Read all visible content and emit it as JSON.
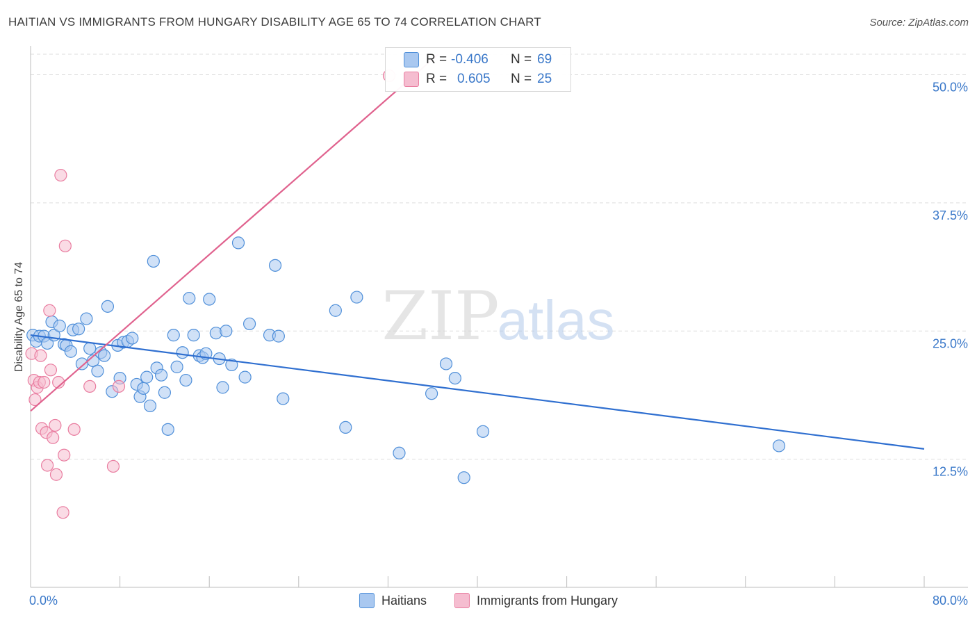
{
  "title": "HAITIAN VS IMMIGRANTS FROM HUNGARY DISABILITY AGE 65 TO 74 CORRELATION CHART",
  "source": "Source: ZipAtlas.com",
  "watermark": {
    "bold": "ZIP",
    "light": "atlas"
  },
  "colors": {
    "blue": "#4f8fd9",
    "blue_fill": "#a9c8f0",
    "blue_line": "#2f6fd0",
    "pink": "#e97da0",
    "pink_fill": "#f5bdd0",
    "pink_line": "#e0628e",
    "tick_label": "#3a78c9",
    "grid": "#dddddd"
  },
  "stats": {
    "rows": [
      {
        "series": "Haitians",
        "r_label": "R =",
        "r_value": "-0.406",
        "n_label": "N =",
        "n_value": "69"
      },
      {
        "series": "Immigrants from Hungary",
        "r_label": "R =",
        "r_value": "0.605",
        "n_label": "N =",
        "n_value": "25"
      }
    ]
  },
  "chart_data": {
    "type": "scatter",
    "title": "HAITIAN VS IMMIGRANTS FROM HUNGARY DISABILITY AGE 65 TO 74 CORRELATION CHART",
    "xlabel": "",
    "ylabel": "Disability Age 65 to 74",
    "xlim": [
      0,
      80
    ],
    "ylim": [
      0,
      52
    ],
    "x_tick_labels": [
      "0.0%",
      "80.0%"
    ],
    "y_ticks": [
      12.5,
      25.0,
      37.5,
      50.0
    ],
    "y_tick_labels": [
      "12.5%",
      "25.0%",
      "37.5%",
      "50.0%"
    ],
    "grid": true,
    "legend": [
      "Haitians",
      "Immigrants from Hungary"
    ],
    "series": [
      {
        "name": "Haitians",
        "color": "blue",
        "trend": {
          "x": [
            0,
            80
          ],
          "y": [
            24.6,
            13.5
          ]
        },
        "points": [
          [
            0.2,
            24.6
          ],
          [
            0.5,
            24.0
          ],
          [
            0.8,
            24.5
          ],
          [
            1.2,
            24.5
          ],
          [
            1.5,
            23.8
          ],
          [
            1.9,
            25.9
          ],
          [
            2.1,
            24.6
          ],
          [
            2.6,
            25.5
          ],
          [
            3.0,
            23.7
          ],
          [
            3.2,
            23.6
          ],
          [
            3.6,
            23.0
          ],
          [
            3.8,
            25.1
          ],
          [
            4.3,
            25.2
          ],
          [
            4.6,
            21.8
          ],
          [
            5.0,
            26.2
          ],
          [
            5.3,
            23.3
          ],
          [
            5.6,
            22.1
          ],
          [
            6.0,
            21.1
          ],
          [
            6.3,
            22.9
          ],
          [
            6.6,
            22.6
          ],
          [
            6.9,
            27.4
          ],
          [
            7.3,
            19.1
          ],
          [
            7.8,
            23.6
          ],
          [
            8.0,
            20.4
          ],
          [
            8.3,
            23.9
          ],
          [
            8.7,
            24.0
          ],
          [
            9.1,
            24.3
          ],
          [
            9.5,
            19.8
          ],
          [
            9.8,
            18.6
          ],
          [
            10.1,
            19.4
          ],
          [
            10.4,
            20.5
          ],
          [
            10.7,
            17.7
          ],
          [
            11.0,
            31.8
          ],
          [
            11.3,
            21.4
          ],
          [
            11.7,
            20.7
          ],
          [
            12.0,
            19.0
          ],
          [
            12.3,
            15.4
          ],
          [
            12.8,
            24.6
          ],
          [
            13.1,
            21.5
          ],
          [
            13.6,
            22.9
          ],
          [
            13.9,
            20.2
          ],
          [
            14.2,
            28.2
          ],
          [
            14.6,
            24.6
          ],
          [
            15.1,
            22.6
          ],
          [
            15.4,
            22.4
          ],
          [
            15.7,
            22.8
          ],
          [
            16.0,
            28.1
          ],
          [
            16.6,
            24.8
          ],
          [
            16.9,
            22.3
          ],
          [
            17.2,
            19.5
          ],
          [
            17.5,
            25.0
          ],
          [
            18.0,
            21.7
          ],
          [
            18.6,
            33.6
          ],
          [
            19.2,
            20.5
          ],
          [
            19.6,
            25.7
          ],
          [
            21.4,
            24.6
          ],
          [
            21.9,
            31.4
          ],
          [
            22.2,
            24.5
          ],
          [
            22.6,
            18.4
          ],
          [
            27.3,
            27.0
          ],
          [
            28.2,
            15.6
          ],
          [
            29.2,
            28.3
          ],
          [
            33.0,
            13.1
          ],
          [
            35.9,
            18.9
          ],
          [
            37.2,
            21.8
          ],
          [
            38.0,
            20.4
          ],
          [
            38.8,
            10.7
          ],
          [
            40.5,
            15.2
          ],
          [
            67.0,
            13.8
          ]
        ]
      },
      {
        "name": "Immigrants from Hungary",
        "color": "pink",
        "trend": {
          "x": [
            0,
            36.5
          ],
          "y": [
            17.2,
            52.0
          ]
        },
        "points": [
          [
            0.1,
            22.8
          ],
          [
            0.3,
            20.2
          ],
          [
            0.4,
            18.3
          ],
          [
            0.6,
            19.5
          ],
          [
            0.8,
            20.0
          ],
          [
            0.9,
            22.6
          ],
          [
            1.0,
            15.5
          ],
          [
            1.2,
            20.0
          ],
          [
            1.4,
            15.1
          ],
          [
            1.5,
            11.9
          ],
          [
            1.7,
            27.0
          ],
          [
            1.8,
            21.2
          ],
          [
            2.0,
            14.6
          ],
          [
            2.2,
            15.8
          ],
          [
            2.3,
            11.0
          ],
          [
            2.5,
            20.0
          ],
          [
            2.7,
            40.2
          ],
          [
            2.9,
            7.3
          ],
          [
            3.1,
            33.3
          ],
          [
            3.0,
            12.9
          ],
          [
            3.9,
            15.4
          ],
          [
            5.3,
            19.6
          ],
          [
            7.4,
            11.8
          ],
          [
            7.9,
            19.6
          ],
          [
            32.1,
            49.9
          ]
        ]
      }
    ]
  }
}
